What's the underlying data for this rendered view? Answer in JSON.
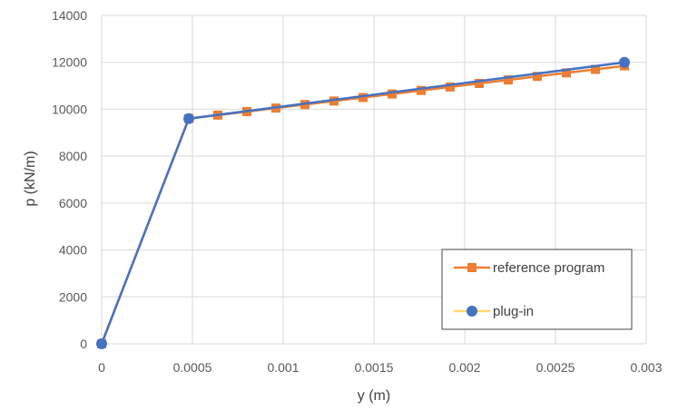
{
  "chart_data": {
    "type": "line",
    "title": "",
    "xlabel": "y (m)",
    "ylabel": "p (kN/m)",
    "xlim": [
      0,
      0.003
    ],
    "ylim": [
      0,
      14000
    ],
    "xticks": [
      "0",
      "0.0005",
      "0.001",
      "0.0015",
      "0.002",
      "0.0025",
      "0.003"
    ],
    "xtick_values": [
      0,
      0.0005,
      0.001,
      0.0015,
      0.002,
      0.0025,
      0.003
    ],
    "yticks": [
      "0",
      "2000",
      "4000",
      "6000",
      "8000",
      "10000",
      "12000",
      "14000"
    ],
    "ytick_values": [
      0,
      2000,
      4000,
      6000,
      8000,
      10000,
      12000,
      14000
    ],
    "grid": true,
    "legend_position": "bottom-right",
    "series": [
      {
        "name": "reference program",
        "color": "#ED7D31",
        "marker": "square",
        "x": [
          0,
          0.00048,
          0.00064,
          0.0008,
          0.00096,
          0.00112,
          0.00128,
          0.00144,
          0.0016,
          0.00176,
          0.00192,
          0.00208,
          0.00224,
          0.0024,
          0.00256,
          0.00272,
          0.00288
        ],
        "y": [
          0,
          9600,
          9750,
          9900,
          10050,
          10200,
          10350,
          10500,
          10650,
          10800,
          10950,
          11100,
          11250,
          11400,
          11550,
          11700,
          11850
        ]
      },
      {
        "name": "plug-in",
        "color": "#4472C4",
        "marker": "circle",
        "x": [
          0,
          0.00048,
          0.00288
        ],
        "y": [
          0,
          9600,
          12000
        ]
      }
    ]
  }
}
